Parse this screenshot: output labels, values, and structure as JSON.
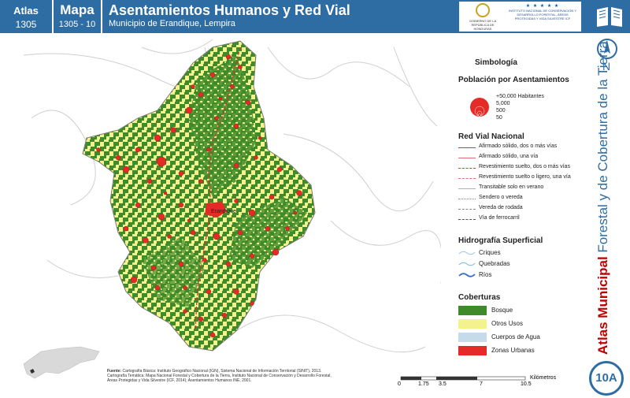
{
  "header": {
    "atlas_label": "Atlas",
    "atlas_number": "1305",
    "mapa_label": "Mapa",
    "mapa_number": "1305 - 10",
    "title": "Asentamientos Humanos y Red Vial",
    "subtitle": "Municipio de Erandique, Lempira"
  },
  "logos": {
    "left_text": "GOBIERNO DE LA REPÚBLICA DE HONDURAS",
    "right_text": "INSTITUTO NACIONAL DE CONSERVACIÓN Y DESARROLLO FORESTAL, ÁREAS PROTEGIDAS Y VIDA SILVESTRE ICF"
  },
  "side": {
    "north_label": "N",
    "vertical_title_bold": "Atlas Municipal",
    "vertical_title_rest": "Forestal y de Cobertura de la Tierra",
    "badge": "10A"
  },
  "map": {
    "town_label": "Erandique"
  },
  "legend": {
    "title": "Simbología",
    "population": {
      "heading": "Población por Asentamientos",
      "sizes": [
        "+50,000 Habitantes",
        "5,000",
        "500",
        "50"
      ]
    },
    "roads": {
      "heading": "Red Vial Nacional",
      "items": [
        {
          "label": "Afirmado sólido, dos o más vías",
          "color": "#e03030",
          "style": "solid"
        },
        {
          "label": "Afirmado sólido, una vía",
          "color": "#e07070",
          "style": "solid"
        },
        {
          "label": "Revestimiento suelto, dos o más vías",
          "color": "#e03030",
          "style": "dashed"
        },
        {
          "label": "Revestimiento suelto o ligero, una vía",
          "color": "#e07070",
          "style": "dashed"
        },
        {
          "label": "Transitable solo en verano",
          "color": "#b0b0b0",
          "style": "solid"
        },
        {
          "label": "Sendero o vereda",
          "color": "#888888",
          "style": "dotted"
        },
        {
          "label": "Vereda de rodada",
          "color": "#888888",
          "style": "dashed"
        },
        {
          "label": "Vía de ferrocarril",
          "color": "#555555",
          "style": "dashed"
        }
      ]
    },
    "hydro": {
      "heading": "Hidrografía Superficial",
      "items": [
        {
          "label": "Criques",
          "color": "#9cc3e6"
        },
        {
          "label": "Quebradas",
          "color": "#7fb2e0"
        },
        {
          "label": "Ríos",
          "color": "#3a6fc4"
        }
      ]
    },
    "cover": {
      "heading": "Coberturas",
      "items": [
        {
          "label": "Bosque",
          "color": "#3f8a2a"
        },
        {
          "label": "Otros Usos",
          "color": "#f4f28c"
        },
        {
          "label": "Cuerpos de Agua",
          "color": "#c5dbe9"
        },
        {
          "label": "Zonas Urbanas",
          "color": "#e52b25"
        }
      ]
    }
  },
  "footer": {
    "fuente_label": "Fuente:",
    "fuente_lines": [
      "Cartografía Básica: Instituto Geográfico Nacional (IGN), Sistema Nacional de Información Territorial (SINIT), 2013.",
      "Cartografía Temática: Mapa Nacional Forestal y Cobertura de la Tierra, Instituto Nacional de Conservación y Desarrollo Forestal,",
      "Áreas Protegidas y Vida Silvestre (ICF, 2014); Asentamientos Humanos INE, 2001."
    ],
    "scale_unit": "Kilómetros",
    "scale_ticks": [
      "0",
      "1.75",
      "3.5",
      "7",
      "10.5"
    ]
  },
  "colors": {
    "header_blue": "#2e6da4",
    "forest": "#3f8a2a",
    "other_uses": "#f4f28c",
    "urban": "#e52b25"
  }
}
